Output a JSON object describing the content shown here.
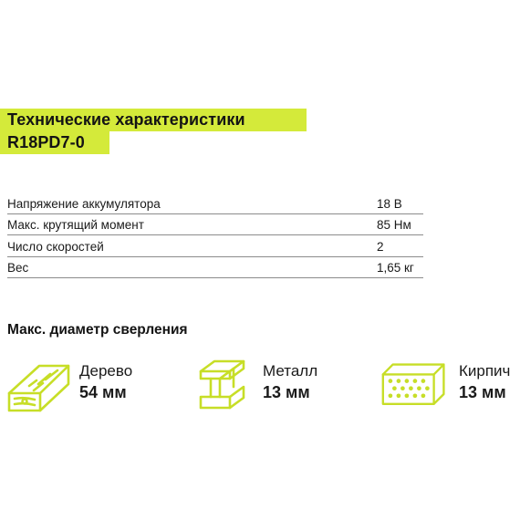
{
  "title": {
    "line1": "Технические характеристики",
    "line2": "R18PD7-0"
  },
  "specs": [
    {
      "label": "Напряжение аккумулятора",
      "value": "18 В"
    },
    {
      "label": "Макс. крутящий момент",
      "value": "85 Нм"
    },
    {
      "label": "Число скоростей",
      "value": "2"
    },
    {
      "label": "Вес",
      "value": "1,65 кг"
    }
  ],
  "drilling": {
    "title": "Макс. диаметр сверления",
    "materials": [
      {
        "name": "Дерево",
        "size": "54 мм",
        "icon": "wood-plank-icon"
      },
      {
        "name": "Металл",
        "size": "13 мм",
        "icon": "steel-beam-icon"
      },
      {
        "name": "Кирпич",
        "size": "13 мм",
        "icon": "brick-icon"
      }
    ]
  },
  "colors": {
    "accent": "#d4ea3a",
    "icon_stroke": "#c7de27",
    "text": "#1a1a1a",
    "divider": "#8c8c8c"
  }
}
